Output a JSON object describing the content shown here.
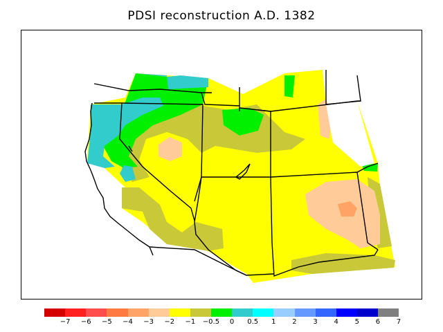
{
  "title": "PDSI reconstruction A.D. 1382",
  "legend": {
    "colors": [
      "#d40000",
      "#ff1f1f",
      "#ff4d4d",
      "#ff7a40",
      "#ffa366",
      "#ffcc99",
      "#ffff00",
      "#c8c838",
      "#00f000",
      "#33cccc",
      "#00ffff",
      "#99ccff",
      "#6699ff",
      "#3366ff",
      "#0000ff",
      "#0000cc",
      "#808080"
    ],
    "labels": [
      "−7",
      "−6",
      "−5",
      "−4",
      "−3",
      "−2",
      "−1",
      "−0.5",
      "0",
      "0.5",
      "1",
      "2",
      "3",
      "4",
      "5",
      "6",
      "7"
    ]
  }
}
